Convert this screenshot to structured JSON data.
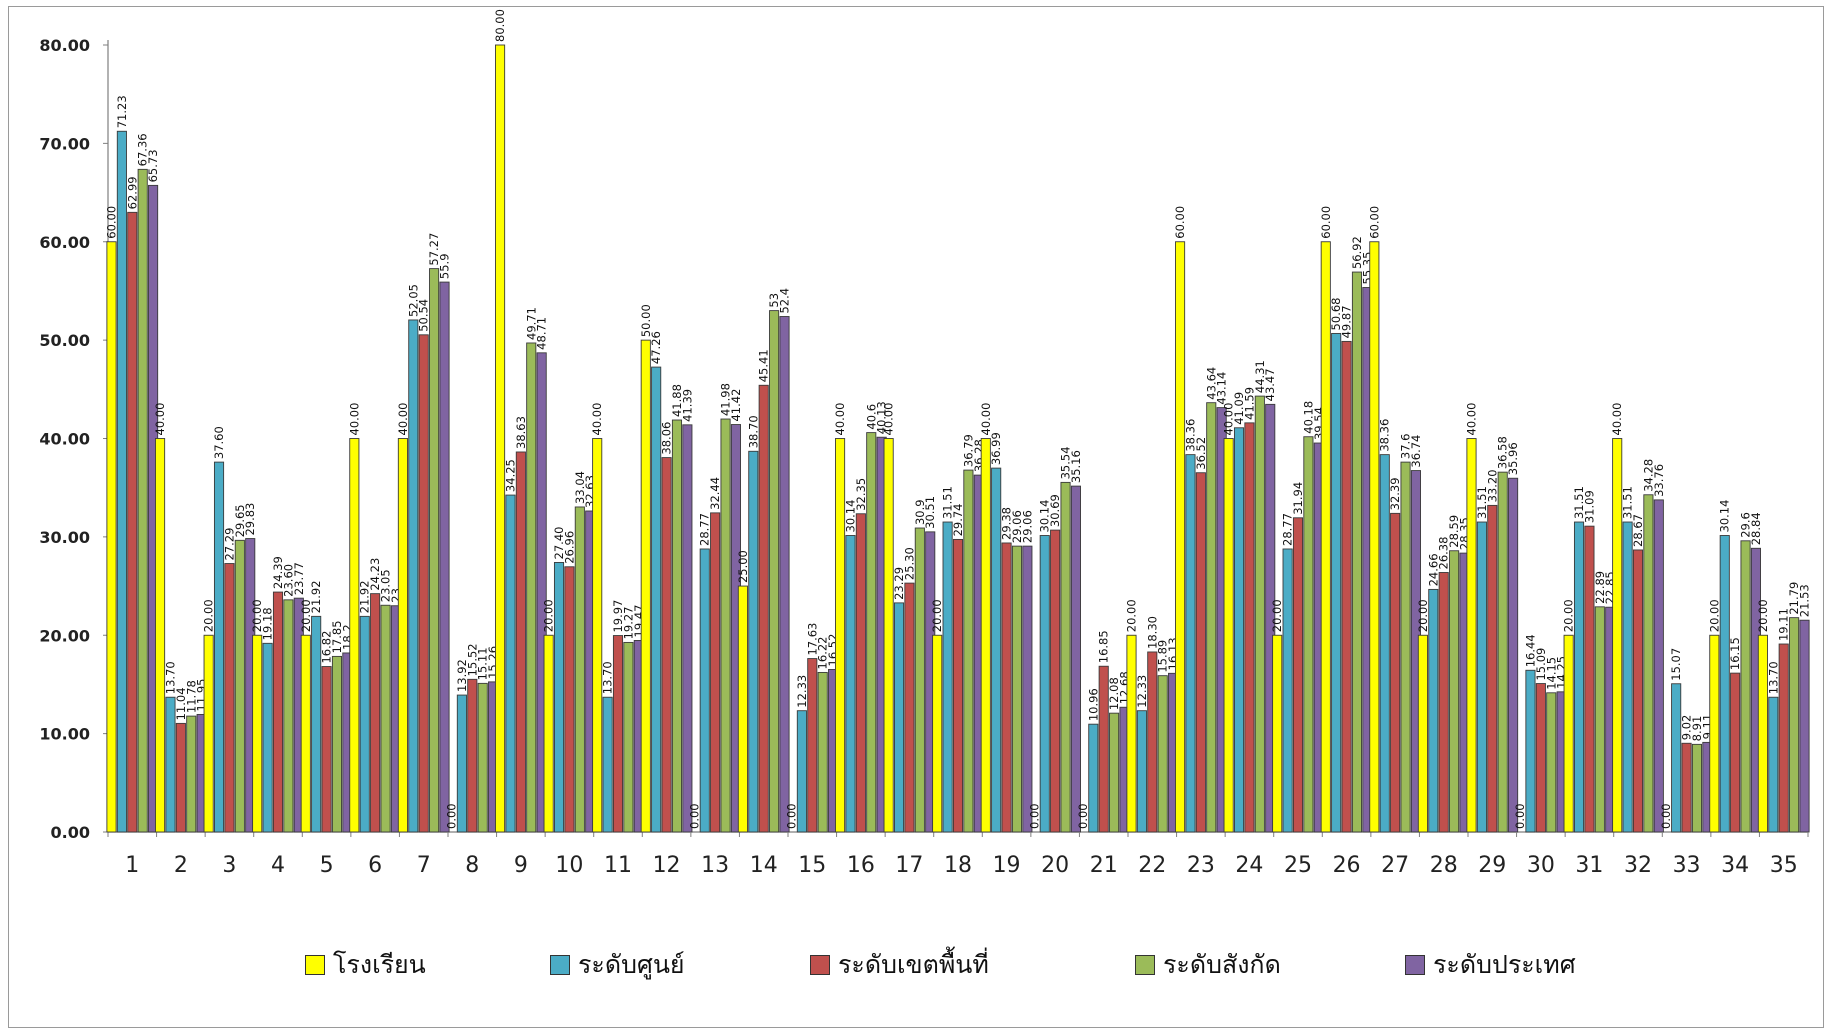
{
  "chart_data": {
    "type": "bar",
    "title": "",
    "xlabel": "",
    "ylabel": "",
    "ylim": [
      0,
      80
    ],
    "yticks": [
      "0.00",
      "10.00",
      "20.00",
      "30.00",
      "40.00",
      "50.00",
      "60.00",
      "70.00",
      "80.00"
    ],
    "grid": false,
    "legend_position": "bottom",
    "categories": [
      "1",
      "2",
      "3",
      "4",
      "5",
      "6",
      "7",
      "8",
      "9",
      "10",
      "11",
      "12",
      "13",
      "14",
      "15",
      "16",
      "17",
      "18",
      "19",
      "20",
      "21",
      "22",
      "23",
      "24",
      "25",
      "26",
      "27",
      "28",
      "29",
      "30",
      "31",
      "32",
      "33",
      "34",
      "35"
    ],
    "series": [
      {
        "name": "โรงเรียน",
        "color": "#ffff00",
        "values": [
          60,
          40,
          20,
          20,
          20,
          40,
          40,
          0,
          80,
          20,
          40,
          50,
          0,
          25,
          0,
          40,
          40,
          20,
          40,
          0,
          0,
          20,
          60,
          40,
          20,
          60,
          60,
          20,
          40,
          0,
          20,
          40,
          0,
          20,
          20
        ],
        "labels": [
          "60.00",
          "40.00",
          "20.00",
          "20.00",
          "20.00",
          "40.00",
          "40.00",
          "0.00",
          "80.00",
          "20.00",
          "40.00",
          "50.00",
          "0.00",
          "25.00",
          "0.00",
          "40.00",
          "40.00",
          "20.00",
          "40.00",
          "0.00",
          "0.00",
          "20.00",
          "60.00",
          "40.00",
          "20.00",
          "60.00",
          "60.00",
          "20.00",
          "40.00",
          "0.00",
          "20.00",
          "40.00",
          "0.00",
          "20.00",
          "20.00"
        ]
      },
      {
        "name": "ระดับศูนย์",
        "color": "#4bacc6",
        "values": [
          71.23,
          13.7,
          37.6,
          19.18,
          21.92,
          21.92,
          52.05,
          13.92,
          34.25,
          27.4,
          13.7,
          47.26,
          28.77,
          38.7,
          12.33,
          30.14,
          23.29,
          31.51,
          36.99,
          30.14,
          10.96,
          12.33,
          38.36,
          41.09,
          28.77,
          50.68,
          38.36,
          24.66,
          31.51,
          16.44,
          31.51,
          31.51,
          15.07,
          30.14,
          13.7
        ],
        "labels": [
          "71.23",
          "13.70",
          "37.60",
          "19.18",
          "21.92",
          "21.92",
          "52.05",
          "13.92",
          "34.25",
          "27.40",
          "13.70",
          "47.26",
          "28.77",
          "38.70",
          "12.33",
          "30.14",
          "23.29",
          "31.51",
          "36.99",
          "30.14",
          "10.96",
          "12.33",
          "38.36",
          "41.09",
          "28.77",
          "50.68",
          "38.36",
          "24.66",
          "31.51",
          "16.44",
          "31.51",
          "31.51",
          "15.07",
          "30.14",
          "13.70"
        ]
      },
      {
        "name": "ระดับเขตพื้นที่",
        "color": "#c0504d",
        "values": [
          62.99,
          11.04,
          27.29,
          24.39,
          16.82,
          24.23,
          50.54,
          15.52,
          38.63,
          26.96,
          19.97,
          38.06,
          32.44,
          45.41,
          17.63,
          32.35,
          25.3,
          29.74,
          29.38,
          30.69,
          16.85,
          18.3,
          36.52,
          41.59,
          31.94,
          49.87,
          32.39,
          26.38,
          33.2,
          15.09,
          31.09,
          28.67,
          9.02,
          16.15,
          19.11
        ],
        "labels": [
          "62.99",
          "11.04",
          "27.29",
          "24.39",
          "16.82",
          "24.23",
          "50.54",
          "15.52",
          "38.63",
          "26.96",
          "19.97",
          "38.06",
          "32.44",
          "45.41",
          "17.63",
          "32.35",
          "25.30",
          "29.74",
          "29.38",
          "30.69",
          "16.85",
          "18.30",
          "36.52",
          "41.59",
          "31.94",
          "49.87",
          "32.39",
          "26.38",
          "33.20",
          "15.09",
          "31.09",
          "28.67",
          "9.02",
          "16.15",
          "19.11"
        ]
      },
      {
        "name": "ระดับสังกัด",
        "color": "#9bbb59",
        "values": [
          67.36,
          11.78,
          29.65,
          23.6,
          17.85,
          23.05,
          57.27,
          15.11,
          49.71,
          33.04,
          19.27,
          41.88,
          41.98,
          53,
          16.22,
          40.6,
          30.9,
          36.79,
          29.06,
          35.54,
          12.08,
          15.89,
          43.64,
          44.31,
          40.18,
          56.92,
          37.6,
          28.59,
          36.58,
          14.15,
          22.89,
          34.28,
          8.91,
          29.6,
          21.79
        ],
        "labels": [
          "67.36",
          "11.78",
          "29.65",
          "23.60",
          "17.85",
          "23.05",
          "57.27",
          "15.11",
          "49.71",
          "33.04",
          "19.27",
          "41.88",
          "41.98",
          "53",
          "16.22",
          "40.6",
          "30.9",
          "36.79",
          "29.06",
          "35.54",
          "12.08",
          "15.89",
          "43.64",
          "44.31",
          "40.18",
          "56.92",
          "37.6",
          "28.59",
          "36.58",
          "14.15",
          "22.89",
          "34.28",
          "8.91",
          "29.6",
          "21.79"
        ]
      },
      {
        "name": "ระดับประเทศ",
        "color": "#8064a2",
        "values": [
          65.73,
          11.95,
          29.83,
          23.77,
          18.2,
          23,
          55.9,
          15.26,
          48.71,
          32.63,
          19.47,
          41.39,
          41.42,
          52.4,
          16.52,
          40.13,
          30.51,
          36.28,
          29.06,
          35.16,
          12.68,
          16.13,
          43.14,
          43.47,
          39.54,
          55.35,
          36.74,
          28.35,
          35.96,
          14.25,
          22.85,
          33.76,
          9.11,
          28.84,
          21.53
        ],
        "labels": [
          "65.73",
          "11.95",
          "29.83",
          "23.77",
          "18.2",
          "23",
          "55.9",
          "15.26",
          "48.71",
          "32.63",
          "19.47",
          "41.39",
          "41.42",
          "52.4",
          "16.52",
          "40.13",
          "30.51",
          "36.28",
          "29.06",
          "35.16",
          "12.68",
          "16.13",
          "43.14",
          "43.47",
          "39.54",
          "55.35",
          "36.74",
          "28.35",
          "35.96",
          "14.25",
          "22.85",
          "33.76",
          "9.11",
          "28.84",
          "21.53"
        ]
      }
    ]
  }
}
